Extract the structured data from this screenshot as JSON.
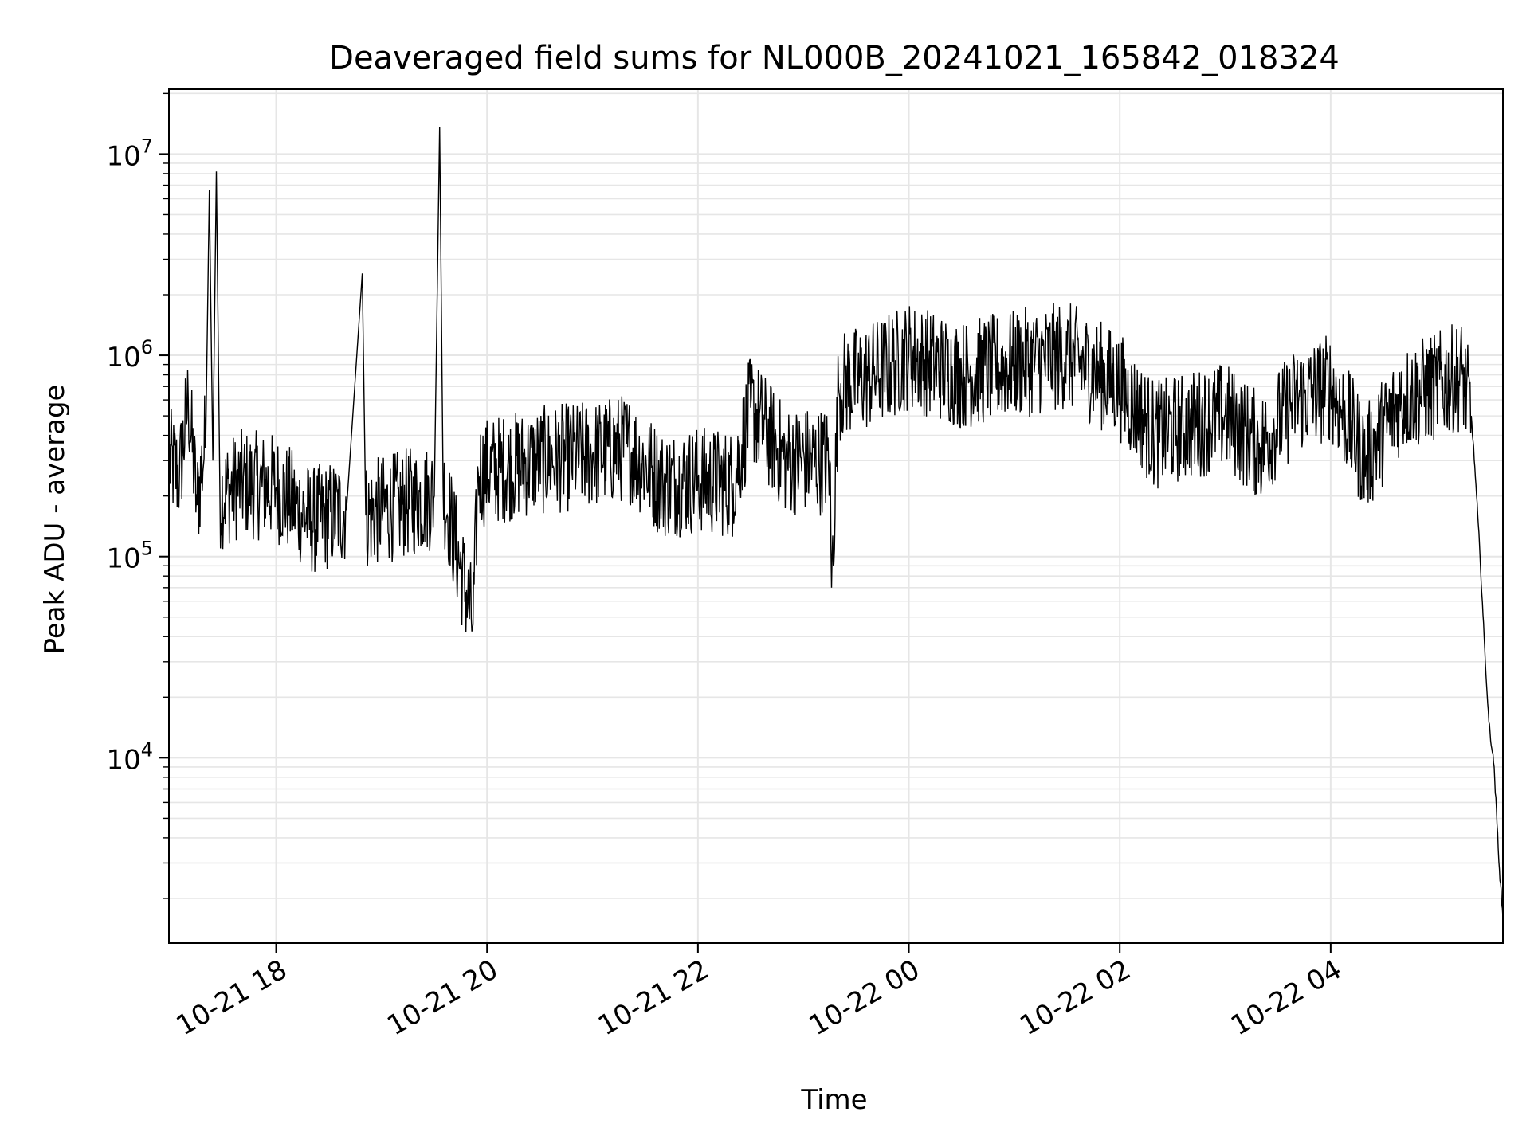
{
  "chart_data": {
    "type": "line",
    "title": "Deaveraged field sums for NL000B_20241021_165842_018324",
    "xlabel": "Time",
    "ylabel": "Peak ADU - average",
    "yscale": "log",
    "grid": true,
    "legend": "none",
    "line_color": "#000000",
    "xlim": [
      "2024-10-21 16:59",
      "2024-10-22 05:38"
    ],
    "ylim": [
      1200,
      21000000
    ],
    "x_ticks": [
      {
        "t": "2024-10-21 18:00",
        "label": "10-21 18"
      },
      {
        "t": "2024-10-21 20:00",
        "label": "10-21 20"
      },
      {
        "t": "2024-10-21 22:00",
        "label": "10-21 22"
      },
      {
        "t": "2024-10-22 00:00",
        "label": "10-22 00"
      },
      {
        "t": "2024-10-22 02:00",
        "label": "10-22 02"
      },
      {
        "t": "2024-10-22 04:00",
        "label": "10-22 04"
      }
    ],
    "y_ticks": [
      {
        "v": 10000,
        "base": "10",
        "exp": "4"
      },
      {
        "v": 100000,
        "base": "10",
        "exp": "5"
      },
      {
        "v": 1000000,
        "base": "10",
        "exp": "6"
      },
      {
        "v": 10000000,
        "base": "10",
        "exp": "7"
      }
    ],
    "series": [
      {
        "points": [
          [
            "2024-10-21 16:59",
            300000
          ],
          [
            "2024-10-21 17:05",
            250000
          ],
          [
            "2024-10-21 17:10",
            600000
          ],
          [
            "2024-10-21 17:15",
            180000
          ],
          [
            "2024-10-21 17:20",
            400000
          ],
          [
            "2024-10-21 17:22",
            6600000
          ],
          [
            "2024-10-21 17:24",
            300000
          ],
          [
            "2024-10-21 17:26",
            8200000
          ],
          [
            "2024-10-21 17:28",
            200000
          ],
          [
            "2024-10-21 17:40",
            230000
          ],
          [
            "2024-10-21 18:00",
            220000
          ],
          [
            "2024-10-21 18:20",
            150000
          ],
          [
            "2024-10-21 18:40",
            170000
          ],
          [
            "2024-10-21 18:49",
            2550000
          ],
          [
            "2024-10-21 18:51",
            160000
          ],
          [
            "2024-10-21 19:10",
            180000
          ],
          [
            "2024-10-21 19:30",
            200000
          ],
          [
            "2024-10-21 19:33",
            13600000
          ],
          [
            "2024-10-21 19:35",
            220000
          ],
          [
            "2024-10-21 19:52",
            46000
          ],
          [
            "2024-10-21 19:55",
            260000
          ],
          [
            "2024-10-21 20:30",
            300000
          ],
          [
            "2024-10-21 21:00",
            320000
          ],
          [
            "2024-10-21 21:20",
            350000
          ],
          [
            "2024-10-21 21:40",
            230000
          ],
          [
            "2024-10-21 22:00",
            240000
          ],
          [
            "2024-10-21 22:20",
            230000
          ],
          [
            "2024-10-21 22:30",
            550000
          ],
          [
            "2024-10-21 22:50",
            300000
          ],
          [
            "2024-10-21 23:15",
            300000
          ],
          [
            "2024-10-21 23:16",
            70000
          ],
          [
            "2024-10-21 23:20",
            700000
          ],
          [
            "2024-10-21 23:40",
            800000
          ],
          [
            "2024-10-22 00:00",
            1000000
          ],
          [
            "2024-10-22 00:30",
            800000
          ],
          [
            "2024-10-22 01:00",
            900000
          ],
          [
            "2024-10-22 01:30",
            1000000
          ],
          [
            "2024-10-22 02:00",
            700000
          ],
          [
            "2024-10-22 02:20",
            400000
          ],
          [
            "2024-10-22 02:40",
            450000
          ],
          [
            "2024-10-22 03:00",
            500000
          ],
          [
            "2024-10-22 03:20",
            350000
          ],
          [
            "2024-10-22 03:40",
            600000
          ],
          [
            "2024-10-22 04:00",
            700000
          ],
          [
            "2024-10-22 04:20",
            300000
          ],
          [
            "2024-10-22 04:40",
            600000
          ],
          [
            "2024-10-22 05:00",
            700000
          ],
          [
            "2024-10-22 05:15",
            800000
          ],
          [
            "2024-10-22 05:20",
            500000
          ],
          [
            "2024-10-22 05:22",
            280000
          ],
          [
            "2024-10-22 05:25",
            100000
          ],
          [
            "2024-10-22 05:28",
            30000
          ],
          [
            "2024-10-22 05:30",
            15000
          ],
          [
            "2024-10-22 05:33",
            9000
          ],
          [
            "2024-10-22 05:36",
            2800
          ],
          [
            "2024-10-22 05:38",
            1600
          ]
        ]
      }
    ]
  }
}
